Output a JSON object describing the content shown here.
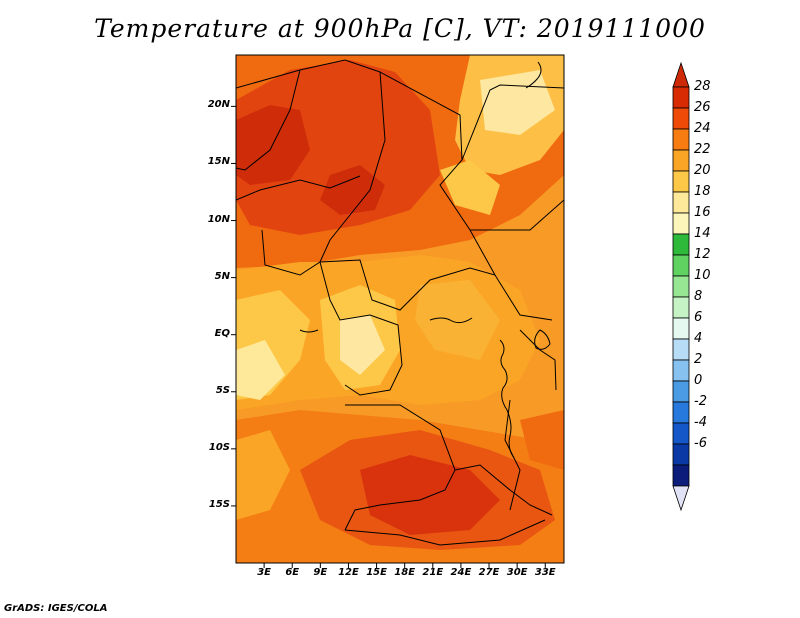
{
  "title": "Temperature at 900hPa [C], VT: 2019111000",
  "credit": "GrADS: IGES/COLA",
  "map": {
    "lat_ticks": [
      {
        "label": "20N",
        "lat": 20
      },
      {
        "label": "15N",
        "lat": 15
      },
      {
        "label": "10N",
        "lat": 10
      },
      {
        "label": "5N",
        "lat": 5
      },
      {
        "label": "EQ",
        "lat": 0
      },
      {
        "label": "5S",
        "lat": -5
      },
      {
        "label": "10S",
        "lat": -10
      },
      {
        "label": "15S",
        "lat": -15
      }
    ],
    "lon_ticks": [
      {
        "label": "3E",
        "lon": 3
      },
      {
        "label": "6E",
        "lon": 6
      },
      {
        "label": "9E",
        "lon": 9
      },
      {
        "label": "12E",
        "lon": 12
      },
      {
        "label": "15E",
        "lon": 15
      },
      {
        "label": "18E",
        "lon": 18
      },
      {
        "label": "21E",
        "lon": 21
      },
      {
        "label": "24E",
        "lon": 24
      },
      {
        "label": "27E",
        "lon": 27
      },
      {
        "label": "30E",
        "lon": 30
      },
      {
        "label": "33E",
        "lon": 33
      }
    ],
    "lat_range": [
      -20,
      24.5
    ],
    "lon_range": [
      0,
      35
    ]
  },
  "colorbar": {
    "labels": [
      "28",
      "26",
      "24",
      "22",
      "20",
      "18",
      "16",
      "14",
      "12",
      "10",
      "8",
      "6",
      "4",
      "2",
      "0",
      "-2",
      "-4",
      "-6"
    ],
    "colors": [
      "#d82b04",
      "#f04a08",
      "#f77c12",
      "#fba526",
      "#fdc848",
      "#fee99a",
      "#fcf6ba",
      "#2eb93a",
      "#5fd262",
      "#97e694",
      "#c6f3c6",
      "#e6f9f0",
      "#b6dcf6",
      "#86c1ef",
      "#4a9ae4",
      "#2779dd",
      "#1457c8",
      "#0a38a4",
      "#0b1c7a"
    ],
    "top_arrow_color": "#cf2a07",
    "bottom_arrow_color": "#e2e2f6"
  }
}
